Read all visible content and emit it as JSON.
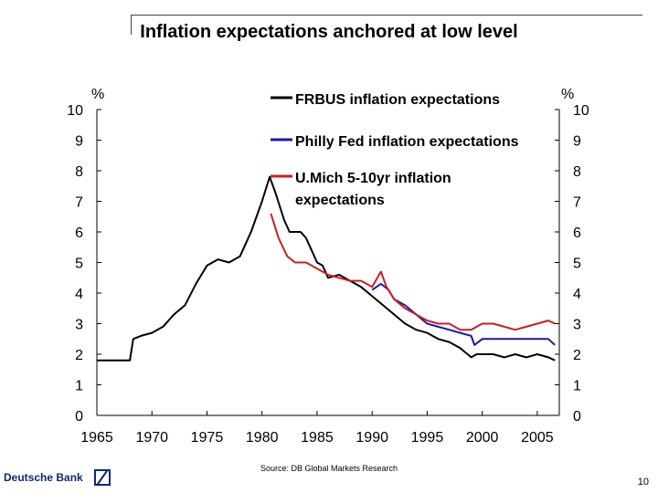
{
  "slide": {
    "title": "Inflation expectations anchored at low level",
    "source": "Source: DB Global Markets Research",
    "page_number": "10",
    "logo_text": "Deutsche Bank"
  },
  "chart_data": {
    "type": "line",
    "title": "Inflation expectations anchored at low level",
    "ylabel_left": "%",
    "ylabel_right": "%",
    "ylim": [
      0,
      10
    ],
    "xlim": [
      1965,
      2007
    ],
    "x_ticks": [
      "1965",
      "1970",
      "1975",
      "1980",
      "1985",
      "1990",
      "1995",
      "2000",
      "2005"
    ],
    "y_ticks": [
      "0",
      "1",
      "2",
      "3",
      "4",
      "5",
      "6",
      "7",
      "8",
      "9",
      "10"
    ],
    "grid": false,
    "legend_position": "top-right",
    "series": [
      {
        "name": "FRBUS inflation expectations",
        "color": "#000000",
        "points": [
          [
            1965,
            1.8
          ],
          [
            1968,
            1.8
          ],
          [
            1968.3,
            2.5
          ],
          [
            1969,
            2.6
          ],
          [
            1970,
            2.7
          ],
          [
            1971,
            2.9
          ],
          [
            1972,
            3.3
          ],
          [
            1973,
            3.6
          ],
          [
            1974,
            4.3
          ],
          [
            1975,
            4.9
          ],
          [
            1976,
            5.1
          ],
          [
            1977,
            5.0
          ],
          [
            1978,
            5.2
          ],
          [
            1979,
            6.0
          ],
          [
            1980,
            7.0
          ],
          [
            1980.7,
            7.8
          ],
          [
            1981.2,
            7.3
          ],
          [
            1982,
            6.4
          ],
          [
            1982.5,
            6.0
          ],
          [
            1983.5,
            6.0
          ],
          [
            1984,
            5.8
          ],
          [
            1985,
            5.0
          ],
          [
            1985.5,
            4.9
          ],
          [
            1986,
            4.5
          ],
          [
            1987,
            4.6
          ],
          [
            1988,
            4.4
          ],
          [
            1989,
            4.2
          ],
          [
            1990,
            3.9
          ],
          [
            1991,
            3.6
          ],
          [
            1992,
            3.3
          ],
          [
            1993,
            3.0
          ],
          [
            1994,
            2.8
          ],
          [
            1995,
            2.7
          ],
          [
            1996,
            2.5
          ],
          [
            1997,
            2.4
          ],
          [
            1998,
            2.2
          ],
          [
            1999,
            1.9
          ],
          [
            1999.5,
            2.0
          ],
          [
            2000,
            2.0
          ],
          [
            2001,
            2.0
          ],
          [
            2002,
            1.9
          ],
          [
            2003,
            2.0
          ],
          [
            2004,
            1.9
          ],
          [
            2005,
            2.0
          ],
          [
            2006,
            1.9
          ],
          [
            2006.6,
            1.8
          ]
        ]
      },
      {
        "name": "Philly Fed inflation expectations",
        "color": "#1a1aa8",
        "points": [
          [
            1990,
            4.1
          ],
          [
            1990.8,
            4.3
          ],
          [
            1991.5,
            4.1
          ],
          [
            1992,
            3.8
          ],
          [
            1993,
            3.6
          ],
          [
            1994,
            3.3
          ],
          [
            1995,
            3.0
          ],
          [
            1996,
            2.9
          ],
          [
            1997,
            2.8
          ],
          [
            1998,
            2.7
          ],
          [
            1999,
            2.6
          ],
          [
            1999.3,
            2.3
          ],
          [
            2000,
            2.5
          ],
          [
            2001,
            2.5
          ],
          [
            2002,
            2.5
          ],
          [
            2003,
            2.5
          ],
          [
            2004,
            2.5
          ],
          [
            2005,
            2.5
          ],
          [
            2006,
            2.5
          ],
          [
            2006.6,
            2.3
          ]
        ]
      },
      {
        "name": "U.Mich 5-10yr inflation expectations",
        "color": "#cc1f1f",
        "points": [
          [
            1980.8,
            6.6
          ],
          [
            1981.5,
            5.8
          ],
          [
            1982.3,
            5.2
          ],
          [
            1983,
            5.0
          ],
          [
            1984,
            5.0
          ],
          [
            1985,
            4.8
          ],
          [
            1986,
            4.6
          ],
          [
            1987,
            4.5
          ],
          [
            1988,
            4.4
          ],
          [
            1989,
            4.4
          ],
          [
            1990,
            4.2
          ],
          [
            1990.8,
            4.7
          ],
          [
            1991.3,
            4.2
          ],
          [
            1992,
            3.8
          ],
          [
            1993,
            3.5
          ],
          [
            1994,
            3.3
          ],
          [
            1995,
            3.1
          ],
          [
            1996,
            3.0
          ],
          [
            1997,
            3.0
          ],
          [
            1998,
            2.8
          ],
          [
            1999,
            2.8
          ],
          [
            2000,
            3.0
          ],
          [
            2001,
            3.0
          ],
          [
            2002,
            2.9
          ],
          [
            2003,
            2.8
          ],
          [
            2004,
            2.9
          ],
          [
            2005,
            3.0
          ],
          [
            2006,
            3.1
          ],
          [
            2006.6,
            3.0
          ]
        ]
      }
    ]
  }
}
